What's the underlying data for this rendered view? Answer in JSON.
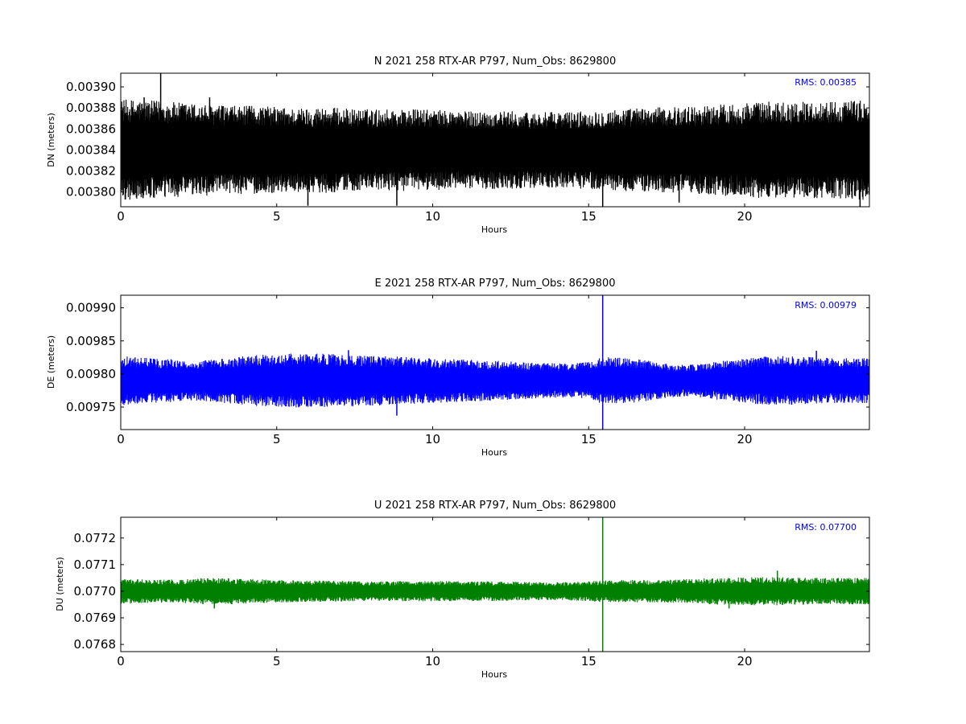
{
  "chart_data": [
    {
      "type": "line",
      "title": "N 2021 258 RTX-AR  P797, Num_Obs: 8629800",
      "xlabel": "Hours",
      "ylabel": "DN (meters)",
      "xlim": [
        0,
        24
      ],
      "ylim": [
        0.003786,
        0.003913
      ],
      "xticks": [
        0,
        5,
        10,
        15,
        20
      ],
      "xtick_labels": [
        "0",
        "5",
        "10",
        "15",
        "20"
      ],
      "yticks": [
        0.0038,
        0.00382,
        0.00384,
        0.00386,
        0.00388,
        0.0039
      ],
      "ytick_labels": [
        "0.00380",
        "0.00382",
        "0.00384",
        "0.00386",
        "0.00388",
        "0.00390"
      ],
      "annotation": "RMS:  0.00385",
      "annotation_color": "#0000ff",
      "grid": false,
      "series": [
        {
          "color": "#000000",
          "x": [
            0,
            0.5,
            1,
            1.28,
            1.5,
            2,
            2.5,
            3,
            3.5,
            4,
            4.5,
            5,
            5.5,
            6,
            6.5,
            7,
            7.5,
            8,
            8.5,
            9,
            9.5,
            10,
            10.5,
            11,
            11.5,
            12,
            12.5,
            13,
            13.5,
            14,
            14.5,
            15,
            15.45,
            16,
            16.5,
            17,
            17.5,
            18,
            18.5,
            19,
            19.5,
            20,
            20.5,
            21,
            21.5,
            22,
            22.5,
            23,
            23.5,
            24
          ],
          "mean": [
            0.00384,
            0.00384,
            0.00384,
            0.00384,
            0.00384,
            0.00384,
            0.00384,
            0.00384,
            0.00384,
            0.00384,
            0.00384,
            0.00384,
            0.00384,
            0.00384,
            0.00384,
            0.00384,
            0.00384,
            0.00384,
            0.00384,
            0.00384,
            0.00384,
            0.00384,
            0.00384,
            0.00384,
            0.00384,
            0.00384,
            0.00384,
            0.00384,
            0.00384,
            0.00384,
            0.00384,
            0.00384,
            0.00384,
            0.00384,
            0.00384,
            0.00384,
            0.00384,
            0.00384,
            0.00384,
            0.00384,
            0.00384,
            0.00384,
            0.00384,
            0.00384,
            0.00384,
            0.00384,
            0.00384,
            0.00384,
            0.00384,
            0.00384
          ],
          "spread": [
            4.8e-05,
            4.8e-05,
            4.7e-05,
            4.7e-05,
            4.6e-05,
            4.5e-05,
            4.4e-05,
            4.3e-05,
            4.2e-05,
            4.2e-05,
            4.2e-05,
            4.1e-05,
            4e-05,
            4e-05,
            4.1e-05,
            4e-05,
            3.9e-05,
            3.9e-05,
            3.9e-05,
            3.9e-05,
            3.9e-05,
            3.8e-05,
            3.8e-05,
            3.7e-05,
            3.7e-05,
            3.7e-05,
            3.7e-05,
            3.6e-05,
            3.6e-05,
            3.6e-05,
            3.7e-05,
            3.7e-05,
            3.8e-05,
            3.9e-05,
            4e-05,
            4e-05,
            4.1e-05,
            4.1e-05,
            4.2e-05,
            4.3e-05,
            4.4e-05,
            4.5e-05,
            4.6e-05,
            4.6e-05,
            4.6e-05,
            4.6e-05,
            4.6e-05,
            4.7e-05,
            4.7e-05,
            4.8e-05
          ],
          "spikes": [
            [
              1.28,
              0.003913
            ],
            [
              2.85,
              0.00389
            ],
            [
              6.0,
              0.003787
            ],
            [
              8.85,
              0.003787
            ],
            [
              15.45,
              0.003786
            ],
            [
              23.7,
              0.003786
            ],
            [
              0.75,
              0.00389
            ],
            [
              17.9,
              0.00379
            ]
          ]
        }
      ]
    },
    {
      "type": "line",
      "title": "E 2021 258 RTX-AR  P797, Num_Obs: 8629800",
      "xlabel": "Hours",
      "ylabel": "DE (meters)",
      "xlim": [
        0,
        24
      ],
      "ylim": [
        0.009716,
        0.009919
      ],
      "xticks": [
        0,
        5,
        10,
        15,
        20
      ],
      "xtick_labels": [
        "0",
        "5",
        "10",
        "15",
        "20"
      ],
      "yticks": [
        0.00975,
        0.0098,
        0.00985,
        0.0099
      ],
      "ytick_labels": [
        "0.00975",
        "0.00980",
        "0.00985",
        "0.00990"
      ],
      "annotation": "RMS:  0.00979",
      "annotation_color": "#0000ff",
      "grid": false,
      "series": [
        {
          "color": "#0000ff",
          "x": [
            0,
            0.5,
            1,
            1.5,
            2,
            2.5,
            3,
            3.5,
            4,
            4.5,
            5,
            5.5,
            6,
            6.5,
            7,
            7.5,
            8,
            8.5,
            9,
            9.5,
            10,
            10.5,
            11,
            11.5,
            12,
            12.5,
            13,
            13.5,
            14,
            14.5,
            15,
            15.45,
            16,
            16.5,
            17,
            17.5,
            18,
            18.5,
            19,
            19.5,
            20,
            20.5,
            21,
            21.5,
            22,
            22.5,
            23,
            23.5,
            24
          ],
          "mean": [
            0.00979,
            0.00979,
            0.00979,
            0.00979,
            0.00979,
            0.00979,
            0.00979,
            0.00979,
            0.00979,
            0.00979,
            0.00979,
            0.00979,
            0.00979,
            0.00979,
            0.00979,
            0.00979,
            0.00979,
            0.00979,
            0.00979,
            0.00979,
            0.00979,
            0.00979,
            0.00979,
            0.00979,
            0.00979,
            0.00979,
            0.00979,
            0.00979,
            0.00979,
            0.00979,
            0.00979,
            0.00979,
            0.00979,
            0.00979,
            0.00979,
            0.00979,
            0.00979,
            0.00979,
            0.00979,
            0.00979,
            0.00979,
            0.00979,
            0.00979,
            0.00979,
            0.00979,
            0.00979,
            0.00979,
            0.00979,
            0.00979
          ],
          "spread": [
            3.7e-05,
            3.6e-05,
            3.4e-05,
            3.3e-05,
            3.1e-05,
            3e-05,
            3.2e-05,
            3.5e-05,
            3.7e-05,
            3.9e-05,
            4e-05,
            4.1e-05,
            4.1e-05,
            4.1e-05,
            4e-05,
            3.9e-05,
            3.8e-05,
            3.7e-05,
            3.6e-05,
            3.5e-05,
            3.4e-05,
            3.3e-05,
            3.2e-05,
            3.1e-05,
            3e-05,
            2.9e-05,
            2.8e-05,
            2.7e-05,
            2.6e-05,
            2.6e-05,
            2.8e-05,
            3.6e-05,
            3.5e-05,
            3.3e-05,
            3e-05,
            2.6e-05,
            2.4e-05,
            2.5e-05,
            2.8e-05,
            3.1e-05,
            3.4e-05,
            3.6e-05,
            3.7e-05,
            3.7e-05,
            3.6e-05,
            3.5e-05,
            3.4e-05,
            3.4e-05,
            3.4e-05
          ],
          "spikes": [
            [
              15.45,
              0.009919
            ],
            [
              15.45,
              0.009716
            ],
            [
              7.3,
              0.009836
            ],
            [
              22.3,
              0.009835
            ],
            [
              8.85,
              0.009737
            ]
          ]
        }
      ]
    },
    {
      "type": "line",
      "title": "U 2021 258 RTX-AR  P797, Num_Obs: 8629800",
      "xlabel": "Hours",
      "ylabel": "DU (meters)",
      "xlim": [
        0,
        24
      ],
      "ylim": [
        0.076773,
        0.077278
      ],
      "xticks": [
        0,
        5,
        10,
        15,
        20
      ],
      "xtick_labels": [
        "0",
        "5",
        "10",
        "15",
        "20"
      ],
      "yticks": [
        0.0768,
        0.0769,
        0.077,
        0.0771,
        0.0772
      ],
      "ytick_labels": [
        "0.0768",
        "0.0769",
        "0.0770",
        "0.0771",
        "0.0772"
      ],
      "annotation": "RMS:  0.07700",
      "annotation_color": "#0000ff",
      "grid": false,
      "series": [
        {
          "color": "#008000",
          "x": [
            0,
            0.5,
            1,
            1.5,
            2,
            2.5,
            3,
            3.5,
            4,
            4.5,
            5,
            5.5,
            6,
            6.5,
            7,
            7.5,
            8,
            8.5,
            9,
            9.5,
            10,
            10.5,
            11,
            11.5,
            12,
            12.5,
            13,
            13.5,
            14,
            14.5,
            15,
            15.45,
            16,
            16.5,
            17,
            17.5,
            18,
            18.5,
            19,
            19.5,
            20,
            20.5,
            21,
            21.5,
            22,
            22.5,
            23,
            23.5,
            24
          ],
          "mean": [
            0.077,
            0.077,
            0.077,
            0.077,
            0.077,
            0.077,
            0.077,
            0.077,
            0.077,
            0.077,
            0.077,
            0.077,
            0.077,
            0.077,
            0.077,
            0.077,
            0.077,
            0.077,
            0.077,
            0.077,
            0.077,
            0.077,
            0.077,
            0.077,
            0.077,
            0.077,
            0.077,
            0.077,
            0.077,
            0.077,
            0.077,
            0.077,
            0.077,
            0.077,
            0.077,
            0.077,
            0.077,
            0.077,
            0.077,
            0.077,
            0.077,
            0.077,
            0.077,
            0.077,
            0.077,
            0.077,
            0.077,
            0.077,
            0.077
          ],
          "spread": [
            4.8e-05,
            4.6e-05,
            4.4e-05,
            4.3e-05,
            4.5e-05,
            4.9e-05,
            5e-05,
            4.9e-05,
            4.7e-05,
            4.5e-05,
            4.3e-05,
            4.2e-05,
            4.1e-05,
            4e-05,
            3.9e-05,
            3.8e-05,
            3.7e-05,
            3.7e-05,
            3.8e-05,
            3.8e-05,
            3.8e-05,
            3.8e-05,
            3.7e-05,
            3.7e-05,
            3.7e-05,
            3.6e-05,
            3.5e-05,
            3.4e-05,
            3.4e-05,
            3.5e-05,
            3.7e-05,
            4e-05,
            4.2e-05,
            4.2e-05,
            4.2e-05,
            4.3e-05,
            4.5e-05,
            4.7e-05,
            5e-05,
            5.1e-05,
            5.2e-05,
            5.3e-05,
            5.3e-05,
            5.2e-05,
            5.1e-05,
            5e-05,
            5e-05,
            5e-05,
            5e-05
          ],
          "spikes": [
            [
              15.45,
              0.077278
            ],
            [
              15.45,
              0.076773
            ],
            [
              21.05,
              0.077077
            ],
            [
              3.0,
              0.076935
            ],
            [
              19.5,
              0.076935
            ]
          ]
        }
      ]
    }
  ]
}
